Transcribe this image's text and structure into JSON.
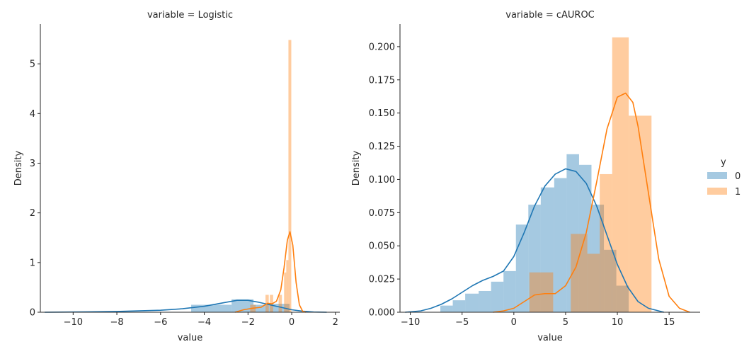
{
  "chart_data": [
    {
      "type": "histogram+kde",
      "title": "variable = Logistic",
      "xlabel": "value",
      "ylabel": "Density",
      "xlim": [
        -11.5,
        2.2
      ],
      "ylim": [
        0,
        5.8
      ],
      "xticks": [
        -10,
        -8,
        -6,
        -4,
        -2,
        0,
        2
      ],
      "yticks": [
        0,
        1,
        2,
        3,
        4,
        5
      ],
      "series": [
        {
          "name": "0",
          "color": "#1f77b4",
          "hist": [
            {
              "x0": -4.6,
              "x1": -2.75,
              "density": 0.15
            },
            {
              "x0": -2.75,
              "x1": -1.75,
              "density": 0.26
            },
            {
              "x0": -1.75,
              "x1": -1.1,
              "density": 0.15
            },
            {
              "x0": -1.1,
              "x1": -0.1,
              "density": 0.17
            }
          ],
          "kde": [
            [
              -11.3,
              0.0
            ],
            [
              -10,
              0.005
            ],
            [
              -8,
              0.015
            ],
            [
              -6,
              0.04
            ],
            [
              -5,
              0.07
            ],
            [
              -4,
              0.12
            ],
            [
              -3,
              0.2
            ],
            [
              -2.5,
              0.24
            ],
            [
              -2,
              0.24
            ],
            [
              -1.5,
              0.2
            ],
            [
              -1,
              0.15
            ],
            [
              -0.5,
              0.1
            ],
            [
              0,
              0.05
            ],
            [
              0.5,
              0.02
            ],
            [
              1,
              0.005
            ],
            [
              1.6,
              0.0
            ]
          ]
        },
        {
          "name": "1",
          "color": "#ff7f0e",
          "hist": [
            {
              "x0": -1.9,
              "x1": -1.65,
              "density": 0.15
            },
            {
              "x0": -1.2,
              "x1": -1.05,
              "density": 0.35
            },
            {
              "x0": -1.0,
              "x1": -0.85,
              "density": 0.35
            },
            {
              "x0": -0.6,
              "x1": -0.45,
              "density": 0.35
            },
            {
              "x0": -0.35,
              "x1": -0.25,
              "density": 0.8
            },
            {
              "x0": -0.25,
              "x1": -0.15,
              "density": 1.05
            },
            {
              "x0": -0.15,
              "x1": -0.02,
              "density": 5.48
            }
          ],
          "kde": [
            [
              -2.6,
              0.0
            ],
            [
              -2.2,
              0.05
            ],
            [
              -1.8,
              0.08
            ],
            [
              -1.4,
              0.1
            ],
            [
              -1.1,
              0.18
            ],
            [
              -0.9,
              0.17
            ],
            [
              -0.7,
              0.22
            ],
            [
              -0.5,
              0.45
            ],
            [
              -0.35,
              0.9
            ],
            [
              -0.2,
              1.45
            ],
            [
              -0.08,
              1.62
            ],
            [
              0.05,
              1.35
            ],
            [
              0.2,
              0.6
            ],
            [
              0.35,
              0.15
            ],
            [
              0.5,
              0.02
            ],
            [
              0.65,
              0.0
            ]
          ]
        }
      ]
    },
    {
      "type": "histogram+kde",
      "title": "variable = cAUROC",
      "xlabel": "value",
      "ylabel": "Density",
      "xlim": [
        -11,
        18
      ],
      "ylim": [
        0,
        0.217
      ],
      "xticks": [
        -10,
        -5,
        0,
        5,
        10,
        15
      ],
      "yticks": [
        "0.000",
        "0.025",
        "0.050",
        "0.075",
        "0.100",
        "0.125",
        "0.150",
        "0.175",
        "0.200"
      ],
      "series": [
        {
          "name": "0",
          "color": "#1f77b4",
          "hist": [
            {
              "x0": -7.1,
              "x1": -5.9,
              "density": 0.005
            },
            {
              "x0": -5.9,
              "x1": -4.7,
              "density": 0.009
            },
            {
              "x0": -4.7,
              "x1": -3.4,
              "density": 0.014
            },
            {
              "x0": -3.4,
              "x1": -2.2,
              "density": 0.016
            },
            {
              "x0": -2.2,
              "x1": -1.0,
              "density": 0.023
            },
            {
              "x0": -1.0,
              "x1": 0.2,
              "density": 0.031
            },
            {
              "x0": 0.2,
              "x1": 1.4,
              "density": 0.066
            },
            {
              "x0": 1.4,
              "x1": 2.6,
              "density": 0.081
            },
            {
              "x0": 2.6,
              "x1": 3.9,
              "density": 0.094
            },
            {
              "x0": 3.9,
              "x1": 5.1,
              "density": 0.101
            },
            {
              "x0": 5.1,
              "x1": 6.3,
              "density": 0.119
            },
            {
              "x0": 6.3,
              "x1": 7.5,
              "density": 0.111
            },
            {
              "x0": 7.5,
              "x1": 8.7,
              "density": 0.081
            },
            {
              "x0": 8.7,
              "x1": 9.9,
              "density": 0.047
            },
            {
              "x0": 9.9,
              "x1": 11.1,
              "density": 0.02
            }
          ],
          "kde": [
            [
              -10.5,
              0.0
            ],
            [
              -9,
              0.001
            ],
            [
              -8,
              0.003
            ],
            [
              -7,
              0.006
            ],
            [
              -6,
              0.01
            ],
            [
              -5,
              0.015
            ],
            [
              -4,
              0.02
            ],
            [
              -3,
              0.024
            ],
            [
              -2,
              0.027
            ],
            [
              -1,
              0.031
            ],
            [
              0,
              0.042
            ],
            [
              1,
              0.06
            ],
            [
              2,
              0.08
            ],
            [
              3,
              0.095
            ],
            [
              4,
              0.104
            ],
            [
              5,
              0.108
            ],
            [
              6,
              0.106
            ],
            [
              7,
              0.097
            ],
            [
              8,
              0.08
            ],
            [
              9,
              0.058
            ],
            [
              10,
              0.036
            ],
            [
              11,
              0.019
            ],
            [
              12,
              0.008
            ],
            [
              13,
              0.003
            ],
            [
              14,
              0.001
            ],
            [
              14.5,
              0.0
            ]
          ]
        },
        {
          "name": "1",
          "color": "#ff7f0e",
          "hist": [
            {
              "x0": 1.5,
              "x1": 3.8,
              "density": 0.03
            },
            {
              "x0": 5.5,
              "x1": 7.1,
              "density": 0.059
            },
            {
              "x0": 7.1,
              "x1": 8.3,
              "density": 0.044
            },
            {
              "x0": 8.3,
              "x1": 9.5,
              "density": 0.104
            },
            {
              "x0": 9.5,
              "x1": 11.1,
              "density": 0.207
            },
            {
              "x0": 11.1,
              "x1": 13.3,
              "density": 0.148
            }
          ],
          "kde": [
            [
              -2,
              0.0
            ],
            [
              -1,
              0.001
            ],
            [
              0,
              0.003
            ],
            [
              1,
              0.008
            ],
            [
              2,
              0.013
            ],
            [
              3,
              0.014
            ],
            [
              4,
              0.014
            ],
            [
              5,
              0.02
            ],
            [
              6,
              0.034
            ],
            [
              7,
              0.06
            ],
            [
              8,
              0.098
            ],
            [
              9,
              0.138
            ],
            [
              10,
              0.162
            ],
            [
              10.8,
              0.165
            ],
            [
              11.5,
              0.158
            ],
            [
              12,
              0.14
            ],
            [
              13,
              0.09
            ],
            [
              14,
              0.04
            ],
            [
              15,
              0.012
            ],
            [
              16,
              0.003
            ],
            [
              17,
              0.0
            ]
          ]
        }
      ]
    }
  ],
  "legend": {
    "title": "y",
    "placement": "right",
    "items": [
      {
        "label": "0",
        "color": "#1f77b4"
      },
      {
        "label": "1",
        "color": "#ff7f0e"
      }
    ]
  }
}
